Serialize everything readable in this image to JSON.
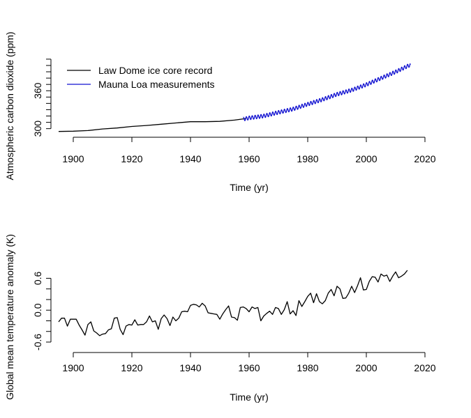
{
  "chart_data": [
    {
      "type": "line",
      "xlabel": "Time (yr)",
      "ylabel": "Atmospheric carbon dioxide (ppm)",
      "xlim": [
        1895,
        2017
      ],
      "ylim": [
        293,
        411
      ],
      "x_ticks": [
        1900,
        1920,
        1940,
        1960,
        1980,
        2000,
        2020
      ],
      "y_ticks": [
        300,
        360
      ],
      "y_tick_labels": [
        "300",
        "360"
      ],
      "legend": {
        "placement": "top-left",
        "entries": [
          "Law Dome ice core record",
          "Mauna Loa measurements"
        ]
      },
      "colors": {
        "Law Dome ice core record": "#000000",
        "Mauna Loa measurements": "#1010d0"
      },
      "series": [
        {
          "name": "Law Dome ice core record",
          "x": [
            1895,
            1900,
            1905,
            1910,
            1915,
            1920,
            1925,
            1930,
            1935,
            1940,
            1945,
            1950,
            1955,
            1959
          ],
          "y": [
            295.5,
            296,
            297,
            299.5,
            301,
            303.5,
            305,
            307,
            309,
            311,
            311,
            311.5,
            313.5,
            316
          ]
        },
        {
          "name": "Mauna Loa measurements",
          "x": [
            1958,
            1960,
            1965,
            1970,
            1975,
            1980,
            1985,
            1990,
            1995,
            2000,
            2005,
            2010,
            2015
          ],
          "y": [
            315,
            317,
            320,
            325.7,
            331,
            338.7,
            346,
            354.4,
            361,
            369.7,
            379.8,
            389.9,
            401
          ],
          "seasonal_amplitude": 3
        }
      ]
    },
    {
      "type": "line",
      "xlabel": "Time (yr)",
      "ylabel": "Global mean temperature anomaly (K)",
      "xlim": [
        1895,
        2017
      ],
      "ylim": [
        -0.6,
        0.75
      ],
      "x_ticks": [
        1900,
        1920,
        1940,
        1960,
        1980,
        2000,
        2020
      ],
      "y_ticks": [
        -0.6,
        0,
        0.6
      ],
      "y_tick_labels": [
        "-0.6",
        "0.0",
        "0.6"
      ],
      "series": [
        {
          "x": [
            1895,
            1896,
            1897,
            1898,
            1899,
            1900,
            1901,
            1902,
            1903,
            1904,
            1905,
            1906,
            1907,
            1908,
            1909,
            1910,
            1911,
            1912,
            1913,
            1914,
            1915,
            1916,
            1917,
            1918,
            1919,
            1920,
            1921,
            1922,
            1923,
            1924,
            1925,
            1926,
            1927,
            1928,
            1929,
            1930,
            1931,
            1932,
            1933,
            1934,
            1935,
            1936,
            1937,
            1938,
            1939,
            1940,
            1941,
            1942,
            1943,
            1944,
            1945,
            1946,
            1947,
            1948,
            1949,
            1950,
            1951,
            1952,
            1953,
            1954,
            1955,
            1956,
            1957,
            1958,
            1959,
            1960,
            1961,
            1962,
            1963,
            1964,
            1965,
            1966,
            1967,
            1968,
            1969,
            1970,
            1971,
            1972,
            1973,
            1974,
            1975,
            1976,
            1977,
            1978,
            1979,
            1980,
            1981,
            1982,
            1983,
            1984,
            1985,
            1986,
            1987,
            1988,
            1989,
            1990,
            1991,
            1992,
            1993,
            1994,
            1995,
            1996,
            1997,
            1998,
            1999,
            2000,
            2001,
            2002,
            2003,
            2004,
            2005,
            2006,
            2007,
            2008,
            2009,
            2010,
            2011,
            2012,
            2013,
            2014
          ],
          "y": [
            -0.22,
            -0.15,
            -0.15,
            -0.3,
            -0.17,
            -0.17,
            -0.17,
            -0.28,
            -0.37,
            -0.47,
            -0.27,
            -0.22,
            -0.39,
            -0.43,
            -0.48,
            -0.45,
            -0.44,
            -0.37,
            -0.35,
            -0.15,
            -0.14,
            -0.36,
            -0.46,
            -0.3,
            -0.27,
            -0.28,
            -0.18,
            -0.28,
            -0.27,
            -0.27,
            -0.22,
            -0.11,
            -0.22,
            -0.2,
            -0.36,
            -0.16,
            -0.09,
            -0.16,
            -0.29,
            -0.13,
            -0.2,
            -0.15,
            -0.03,
            -0.02,
            -0.03,
            0.09,
            0.11,
            0.1,
            0.06,
            0.13,
            0.08,
            -0.05,
            -0.06,
            -0.07,
            -0.08,
            -0.17,
            -0.07,
            0.01,
            0.08,
            -0.13,
            -0.14,
            -0.19,
            0.05,
            0.06,
            0.03,
            -0.03,
            0.06,
            0.03,
            0.05,
            -0.2,
            -0.11,
            -0.06,
            -0.02,
            -0.08,
            0.05,
            0.03,
            -0.08,
            0.01,
            0.16,
            -0.07,
            -0.01,
            -0.1,
            0.18,
            0.07,
            0.16,
            0.26,
            0.32,
            0.14,
            0.31,
            0.16,
            0.12,
            0.18,
            0.32,
            0.39,
            0.27,
            0.45,
            0.4,
            0.22,
            0.23,
            0.32,
            0.45,
            0.33,
            0.46,
            0.61,
            0.38,
            0.39,
            0.54,
            0.63,
            0.62,
            0.53,
            0.68,
            0.64,
            0.66,
            0.54,
            0.64,
            0.72,
            0.61,
            0.64,
            0.68,
            0.75
          ]
        }
      ]
    }
  ]
}
